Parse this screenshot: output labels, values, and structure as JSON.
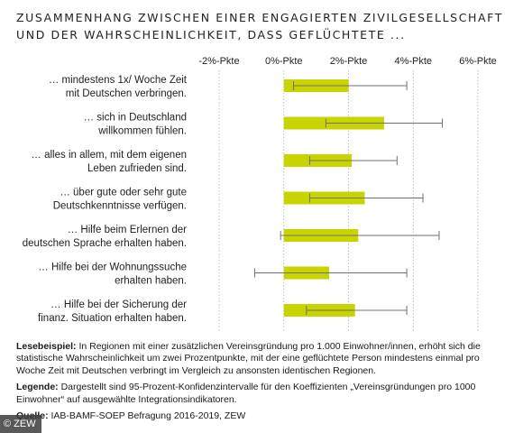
{
  "title_lines": [
    "ZUSAMMENHANG ZWISCHEN EINER ENGAGIERTEN ZIVILGESELLSCHAFT",
    "UND DER WAHRSCHEINLICHKEIT, DASS GEFLÜCHTETE ..."
  ],
  "colors": {
    "bar": "#c8d400",
    "whisker": "#707070",
    "gridline": "#b0b0b0"
  },
  "chart_data": {
    "type": "bar",
    "orientation": "horizontal",
    "xlim": [
      -2,
      6
    ],
    "ticks": [
      -2,
      0,
      2,
      4,
      6
    ],
    "tick_labels": [
      "-2%-Pkte",
      "0%-Pkte",
      "2%-Pkte",
      "4%-Pkte",
      "6%-Pkte"
    ],
    "grid": true,
    "categories": [
      [
        "… mindestens 1x/ Woche Zeit",
        "mit Deutschen verbringen."
      ],
      [
        "… sich in Deutschland",
        "willkommen fühlen."
      ],
      [
        "… alles in allem, mit dem eigenen",
        "Leben zufrieden sind."
      ],
      [
        "… über gute oder sehr gute",
        "Deutschkenntnisse verfügen."
      ],
      [
        "… Hilfe beim Erlernen der",
        "deutschen Sprache erhalten haben."
      ],
      [
        "… Hilfe bei der Wohnungssuche",
        "erhalten haben."
      ],
      [
        "… Hilfe bei der Sicherung der",
        "finanz. Situation erhalten haben."
      ]
    ],
    "values": [
      2.0,
      3.1,
      2.1,
      2.5,
      2.3,
      1.4,
      2.2
    ],
    "ci_low": [
      0.3,
      1.3,
      0.8,
      0.8,
      -0.1,
      -0.9,
      0.7
    ],
    "ci_high": [
      3.8,
      4.9,
      3.5,
      4.3,
      4.8,
      3.8,
      3.8
    ]
  },
  "notes": {
    "lesebeispiel_label": "Lesebeispiel:",
    "lesebeispiel_text": " In Regionen mit einer zusätzlichen Vereinsgründung pro 1.000 Einwohner/innen, erhöht sich die statistische Wahrscheinlichkeit um zwei Prozentpunkte, mit der eine geflüchtete Person mindestens einmal pro Woche Zeit mit Deutschen verbringt im Vergleich zu ansonsten identischen Regionen.",
    "legende_label": "Legende:",
    "legende_text": " Dargestellt sind 95-Prozent-Konfidenzintervalle für den Koeffizienten „Vereinsgründungen pro 1000 Einwohner“ auf ausgewählte Integrationsindikatoren.",
    "quelle_label": "Quelle:",
    "quelle_text": " IAB-BAMF-SOEP Befragung 2016-2019, ZEW"
  },
  "copyright": "© ZEW"
}
